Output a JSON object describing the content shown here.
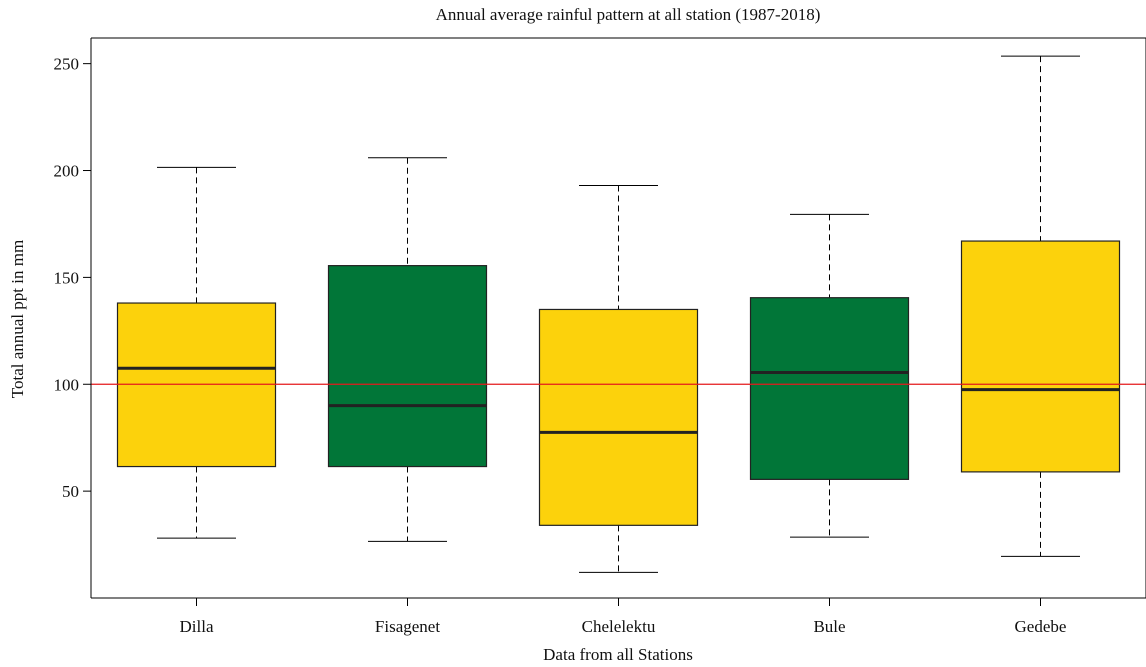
{
  "chart_data": {
    "type": "box",
    "title": "Annual average rainful pattern at all station (1987-2018)",
    "xlabel": "Data from all Stations",
    "ylabel": "Total annual ppt in mm",
    "ylim": [
      0,
      262
    ],
    "yticks": [
      50,
      100,
      150,
      200,
      250
    ],
    "categories": [
      "Dilla",
      "Fisagenet",
      "Chelelektu",
      "Bule",
      "Gedebe"
    ],
    "boxes": [
      {
        "label": "Dilla",
        "min": 28,
        "q1": 61.5,
        "median": 107.5,
        "q3": 138,
        "max": 201.5,
        "color": "#FCD20C"
      },
      {
        "label": "Fisagenet",
        "min": 26.5,
        "q1": 61.5,
        "median": 90,
        "q3": 155.5,
        "max": 206,
        "color": "#017638"
      },
      {
        "label": "Chelelektu",
        "min": 12,
        "q1": 34,
        "median": 77.5,
        "q3": 135,
        "max": 193,
        "color": "#FCD20C"
      },
      {
        "label": "Bule",
        "min": 28.5,
        "q1": 55.5,
        "median": 105.5,
        "q3": 140.5,
        "max": 179.5,
        "color": "#017638"
      },
      {
        "label": "Gedebe",
        "min": 19.5,
        "q1": 59,
        "median": 97.5,
        "q3": 167,
        "max": 253.5,
        "color": "#FCD20C"
      }
    ],
    "reference_line": {
      "y": 100,
      "color": "#E41A1C"
    },
    "grid": false,
    "legend": false
  }
}
